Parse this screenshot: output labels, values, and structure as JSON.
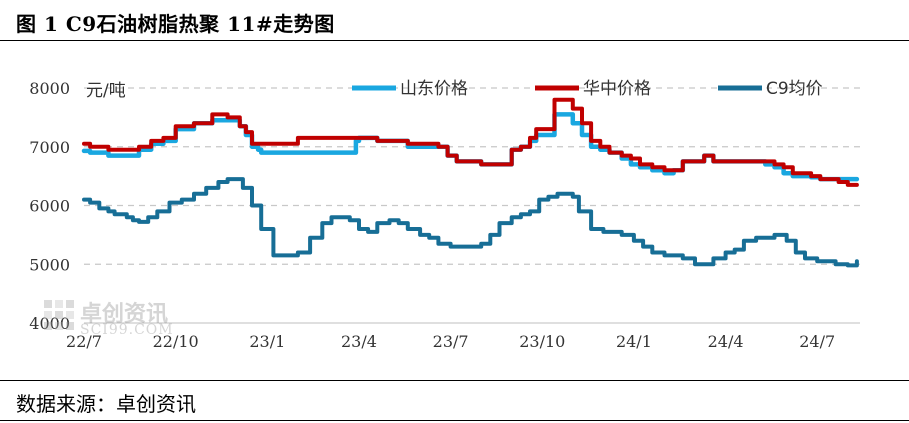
{
  "header": {
    "title": "图 1 C9石油树脂热聚 11#走势图"
  },
  "footer": {
    "source": "数据来源：卓创资讯"
  },
  "watermark": {
    "brand": "卓创资讯",
    "site": "SCI99.COM"
  },
  "chart_data": {
    "type": "line",
    "ylabel": "元/吨",
    "xlabel": "",
    "ylim": [
      4000,
      8000
    ],
    "yticks": [
      4000,
      5000,
      6000,
      7000,
      8000
    ],
    "xticks": [
      "22/7",
      "22/10",
      "23/1",
      "23/4",
      "23/7",
      "23/10",
      "24/1",
      "24/4",
      "24/7"
    ],
    "x_start": "2022-07",
    "x_end": "2024-08",
    "grid": true,
    "legend_position": "top",
    "series": [
      {
        "name": "山东价格",
        "color": "#1aa7e0",
        "x": [
          0,
          0.2,
          0.6,
          0.8,
          1.2,
          1.6,
          1.8,
          2.2,
          2.6,
          3.0,
          3.6,
          4.2,
          4.7,
          5.1,
          5.3,
          5.5,
          5.7,
          5.8,
          8.9,
          9.0,
          9.6,
          10.6,
          11.2,
          11.6,
          11.9,
          12.2,
          12.5,
          13.0,
          13.6,
          14.0,
          14.3,
          14.6,
          14.8,
          15.4,
          15.7,
          16.0,
          16.3,
          16.6,
          16.9,
          17.2,
          17.6,
          17.9,
          18.2,
          18.6,
          19.0,
          19.3,
          19.6,
          20.0,
          20.3,
          20.6,
          21.0,
          21.3,
          21.6,
          22.0,
          22.3,
          22.6,
          22.9,
          23.2,
          23.5,
          23.8,
          24.1,
          24.4,
          24.7,
          25.0,
          25.3
        ],
        "values": [
          6930,
          6900,
          6900,
          6850,
          6850,
          6850,
          6950,
          7050,
          7100,
          7300,
          7400,
          7450,
          7450,
          7350,
          7200,
          7000,
          6950,
          6900,
          7100,
          7150,
          7100,
          7000,
          7000,
          7000,
          6850,
          6750,
          6750,
          6700,
          6700,
          6950,
          7000,
          7100,
          7200,
          7550,
          7550,
          7400,
          7200,
          7000,
          6950,
          6900,
          6800,
          6700,
          6650,
          6600,
          6550,
          6600,
          6750,
          6750,
          6850,
          6750,
          6750,
          6750,
          6750,
          6750,
          6700,
          6650,
          6550,
          6500,
          6500,
          6480,
          6450,
          6450,
          6450,
          6450,
          6450
        ]
      },
      {
        "name": "华中价格",
        "color": "#c00000",
        "x": [
          0,
          0.2,
          0.6,
          0.8,
          1.2,
          1.6,
          1.8,
          2.2,
          2.6,
          3.0,
          3.6,
          4.2,
          4.7,
          5.1,
          5.3,
          5.5,
          5.7,
          6.0,
          6.8,
          7.0,
          8.8,
          9.0,
          9.6,
          10.6,
          11.2,
          11.6,
          11.9,
          12.2,
          12.5,
          13.0,
          13.6,
          14.0,
          14.3,
          14.6,
          14.8,
          15.4,
          15.7,
          16.0,
          16.3,
          16.6,
          16.9,
          17.2,
          17.6,
          17.9,
          18.2,
          18.6,
          19.0,
          19.3,
          19.6,
          20.0,
          20.3,
          20.6,
          21.0,
          21.3,
          21.6,
          22.0,
          22.3,
          22.6,
          22.9,
          23.2,
          23.5,
          23.8,
          24.1,
          24.4,
          24.7,
          25.0,
          25.3
        ],
        "values": [
          7050,
          7000,
          7000,
          6950,
          6950,
          6950,
          7000,
          7100,
          7150,
          7350,
          7400,
          7550,
          7500,
          7350,
          7250,
          7050,
          7050,
          7050,
          7050,
          7150,
          7150,
          7150,
          7100,
          7050,
          7050,
          7000,
          6850,
          6750,
          6750,
          6700,
          6700,
          6950,
          7000,
          7150,
          7300,
          7800,
          7800,
          7650,
          7400,
          7100,
          7000,
          6900,
          6850,
          6800,
          6700,
          6650,
          6600,
          6600,
          6750,
          6750,
          6850,
          6750,
          6750,
          6750,
          6750,
          6750,
          6750,
          6700,
          6650,
          6550,
          6550,
          6500,
          6450,
          6450,
          6400,
          6350,
          6350
        ]
      },
      {
        "name": "C9均价",
        "color": "#176e96",
        "x": [
          0,
          0.2,
          0.5,
          0.8,
          1.0,
          1.4,
          1.6,
          1.8,
          2.1,
          2.4,
          2.8,
          3.2,
          3.6,
          4.0,
          4.4,
          4.7,
          5.0,
          5.2,
          5.5,
          5.8,
          6.2,
          6.6,
          7.0,
          7.4,
          7.8,
          8.1,
          8.4,
          8.7,
          9.0,
          9.3,
          9.6,
          10.0,
          10.3,
          10.6,
          11.0,
          11.3,
          11.6,
          12.0,
          12.3,
          12.6,
          13.0,
          13.3,
          13.6,
          14.0,
          14.3,
          14.6,
          14.9,
          15.2,
          15.5,
          15.8,
          16.0,
          16.2,
          16.6,
          17.0,
          17.3,
          17.6,
          18.0,
          18.3,
          18.6,
          19.0,
          19.3,
          19.6,
          20.0,
          20.3,
          20.6,
          21.0,
          21.3,
          21.6,
          22.0,
          22.3,
          22.6,
          23.0,
          23.3,
          23.6,
          24.0,
          24.3,
          24.6,
          25.0,
          25.3
        ],
        "values": [
          6100,
          6050,
          5950,
          5900,
          5850,
          5800,
          5750,
          5720,
          5800,
          5900,
          6050,
          6100,
          6200,
          6300,
          6400,
          6450,
          6450,
          6300,
          6000,
          5600,
          5150,
          5150,
          5200,
          5450,
          5700,
          5800,
          5800,
          5750,
          5600,
          5550,
          5700,
          5750,
          5700,
          5600,
          5500,
          5450,
          5350,
          5300,
          5300,
          5300,
          5350,
          5500,
          5700,
          5800,
          5850,
          5900,
          6100,
          6150,
          6200,
          6200,
          6150,
          5900,
          5600,
          5550,
          5550,
          5500,
          5400,
          5300,
          5200,
          5150,
          5150,
          5100,
          5000,
          5000,
          5100,
          5200,
          5250,
          5400,
          5450,
          5450,
          5500,
          5400,
          5200,
          5100,
          5050,
          5050,
          5000,
          4980,
          5050
        ]
      }
    ]
  }
}
